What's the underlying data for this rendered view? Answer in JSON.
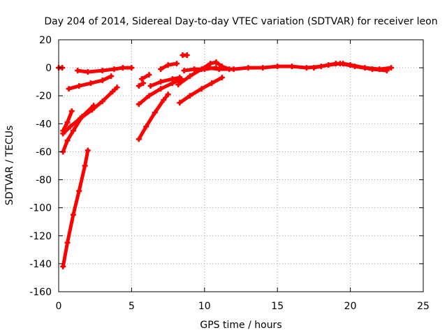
{
  "chart_data": {
    "type": "scatter",
    "title": "Day 204 of 2014, Sidereal Day-to-day VTEC variation (SDTVAR) for receiver leon",
    "xlabel": "GPS time / hours",
    "ylabel": "SDTVAR / TECUs",
    "xlim": [
      0,
      25
    ],
    "ylim": [
      -160,
      20
    ],
    "xticks": [
      0,
      5,
      10,
      15,
      20,
      25
    ],
    "yticks": [
      20,
      0,
      -20,
      -40,
      -60,
      -80,
      -100,
      -120,
      -140,
      -160
    ],
    "grid": true,
    "legend": "none",
    "color": "#ff0000",
    "series": [
      {
        "points": [
          [
            0.0,
            0
          ],
          [
            0.25,
            0
          ]
        ]
      },
      {
        "points": [
          [
            0.3,
            -142
          ],
          [
            0.6,
            -125
          ],
          [
            1.0,
            -105
          ],
          [
            1.4,
            -88
          ],
          [
            1.8,
            -70
          ],
          [
            2.0,
            -59
          ]
        ]
      },
      {
        "points": [
          [
            0.3,
            -60
          ],
          [
            0.6,
            -52
          ],
          [
            1.0,
            -45
          ],
          [
            1.6,
            -35
          ],
          [
            2.4,
            -27
          ]
        ]
      },
      {
        "points": [
          [
            0.3,
            -47
          ],
          [
            0.8,
            -42
          ],
          [
            1.5,
            -36
          ],
          [
            2.3,
            -30
          ],
          [
            3.0,
            -24
          ],
          [
            3.7,
            -17
          ],
          [
            4.0,
            -14
          ]
        ]
      },
      {
        "points": [
          [
            0.3,
            -45
          ],
          [
            0.6,
            -39
          ],
          [
            0.9,
            -31
          ]
        ]
      },
      {
        "points": [
          [
            0.7,
            -15
          ],
          [
            1.4,
            -13
          ],
          [
            2.2,
            -11
          ],
          [
            3.0,
            -9
          ],
          [
            3.6,
            -6
          ]
        ]
      },
      {
        "points": [
          [
            1.3,
            -2
          ],
          [
            2.0,
            -3
          ],
          [
            3.0,
            -2
          ],
          [
            3.8,
            -1
          ],
          [
            4.4,
            0
          ],
          [
            5.0,
            0
          ]
        ]
      },
      {
        "points": [
          [
            5.5,
            -51
          ],
          [
            6.0,
            -42
          ],
          [
            6.6,
            -32
          ],
          [
            7.2,
            -23
          ],
          [
            7.5,
            -19
          ]
        ]
      },
      {
        "points": [
          [
            5.5,
            -26
          ],
          [
            6.2,
            -20
          ],
          [
            7.0,
            -15
          ],
          [
            7.8,
            -11
          ],
          [
            8.4,
            -8
          ]
        ]
      },
      {
        "points": [
          [
            5.5,
            -13
          ],
          [
            5.8,
            -11
          ]
        ]
      },
      {
        "points": [
          [
            5.7,
            -8
          ],
          [
            6.2,
            -5
          ]
        ]
      },
      {
        "points": [
          [
            6.3,
            -13
          ],
          [
            7.0,
            -10
          ],
          [
            7.8,
            -8
          ],
          [
            8.3,
            -7
          ]
        ]
      },
      {
        "points": [
          [
            7.0,
            -1
          ],
          [
            7.5,
            2
          ],
          [
            8.1,
            3
          ]
        ]
      },
      {
        "points": [
          [
            8.5,
            9
          ],
          [
            8.8,
            9
          ]
        ]
      },
      {
        "points": [
          [
            8.3,
            -25
          ],
          [
            9.0,
            -20
          ],
          [
            9.8,
            -15
          ],
          [
            10.5,
            -11
          ],
          [
            11.2,
            -7
          ]
        ]
      },
      {
        "points": [
          [
            8.2,
            -12
          ],
          [
            9.0,
            -6
          ],
          [
            9.8,
            -1
          ],
          [
            10.4,
            3
          ],
          [
            10.8,
            4
          ],
          [
            11.2,
            1
          ],
          [
            11.7,
            -1
          ]
        ]
      },
      {
        "points": [
          [
            8.6,
            -2
          ],
          [
            9.3,
            -1
          ],
          [
            10.0,
            -1
          ],
          [
            10.8,
            0
          ]
        ]
      },
      {
        "points": [
          [
            10.2,
            0
          ],
          [
            11.0,
            -1
          ],
          [
            12.0,
            -1
          ],
          [
            13.0,
            0
          ],
          [
            14.0,
            0
          ],
          [
            15.0,
            1
          ],
          [
            16.0,
            1
          ],
          [
            17.0,
            0
          ],
          [
            18.0,
            1
          ],
          [
            19.0,
            3
          ],
          [
            19.5,
            3
          ],
          [
            20.0,
            2
          ],
          [
            21.0,
            0
          ],
          [
            22.0,
            -1
          ],
          [
            22.8,
            0
          ]
        ]
      },
      {
        "points": [
          [
            17.5,
            0
          ],
          [
            18.5,
            2
          ],
          [
            19.3,
            3
          ],
          [
            20.3,
            1
          ],
          [
            21.5,
            -1
          ],
          [
            22.5,
            -2
          ]
        ]
      }
    ]
  }
}
